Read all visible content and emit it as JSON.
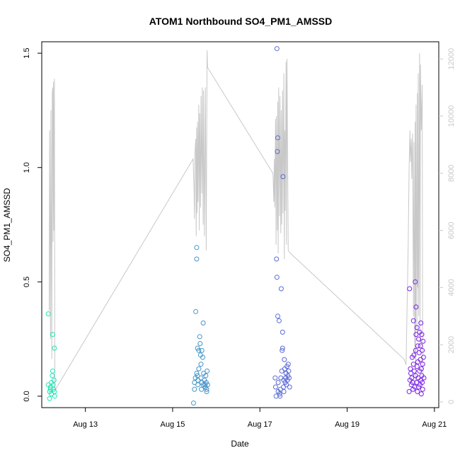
{
  "chart_data": {
    "type": "scatter",
    "title": "ATOM1 Northbound SO4_PM1_AMSSD",
    "xlabel": "Date",
    "ylabel": "SO4_PM1_AMSSD",
    "x_unit": "days in August",
    "xlim": [
      12.0,
      21.1
    ],
    "ylim": [
      -0.05,
      1.55
    ],
    "x_ticks": [
      13,
      15,
      17,
      19,
      21
    ],
    "x_tick_labels": [
      "Aug 13",
      "Aug 15",
      "Aug 17",
      "Aug 19",
      "Aug 21"
    ],
    "y_ticks": [
      0.0,
      0.5,
      1.0,
      1.5
    ],
    "y_tick_labels": [
      "0.0",
      "0.5",
      "1.0",
      "1.5"
    ],
    "y2_lim": [
      -200,
      12600
    ],
    "y2_ticks": [
      0,
      2000,
      4000,
      6000,
      8000,
      10000,
      12000
    ],
    "y2_tick_labels": [
      "0",
      "2000",
      "4000",
      "6000",
      "8000",
      "10000",
      "12000"
    ],
    "grid": false,
    "colors": {
      "points_start": "#22e6b4",
      "points_end": "#7a1ee6",
      "altitude_line": "#c8c8c8"
    },
    "series": [
      {
        "kind": "points",
        "points": [
          [
            12.15,
            0.36
          ],
          [
            12.15,
            0.05
          ],
          [
            12.18,
            0.02
          ],
          [
            12.18,
            -0.01
          ],
          [
            12.2,
            0.03
          ],
          [
            12.2,
            0.04
          ],
          [
            12.22,
            0.06
          ],
          [
            12.22,
            0.01
          ],
          [
            12.24,
            0.09
          ],
          [
            12.25,
            0.27
          ],
          [
            12.25,
            0.11
          ],
          [
            12.26,
            0.05
          ],
          [
            12.27,
            0.03
          ],
          [
            12.28,
            0.07
          ],
          [
            12.29,
            0.21
          ],
          [
            12.29,
            0.02
          ],
          [
            12.3,
            0.0
          ],
          [
            15.48,
            -0.03
          ],
          [
            15.5,
            0.03
          ],
          [
            15.5,
            0.06
          ],
          [
            15.52,
            0.08
          ],
          [
            15.53,
            0.37
          ],
          [
            15.55,
            0.65
          ],
          [
            15.55,
            0.6
          ],
          [
            15.55,
            0.1
          ],
          [
            15.57,
            0.21
          ],
          [
            15.57,
            0.09
          ],
          [
            15.58,
            0.07
          ],
          [
            15.58,
            0.05
          ],
          [
            15.6,
            0.2
          ],
          [
            15.6,
            0.12
          ],
          [
            15.62,
            0.26
          ],
          [
            15.63,
            0.23
          ],
          [
            15.64,
            0.18
          ],
          [
            15.65,
            0.14
          ],
          [
            15.65,
            0.08
          ],
          [
            15.66,
            0.03
          ],
          [
            15.67,
            0.2
          ],
          [
            15.67,
            0.06
          ],
          [
            15.69,
            0.17
          ],
          [
            15.7,
            0.32
          ],
          [
            15.7,
            0.05
          ],
          [
            15.71,
            0.1
          ],
          [
            15.73,
            0.07
          ],
          [
            15.74,
            0.05
          ],
          [
            15.75,
            0.04
          ],
          [
            15.76,
            0.09
          ],
          [
            15.77,
            0.06
          ],
          [
            15.78,
            0.03
          ],
          [
            15.78,
            0.02
          ],
          [
            15.79,
            0.11
          ],
          [
            15.8,
            0.05
          ],
          [
            17.35,
            0.08
          ],
          [
            17.36,
            0.04
          ],
          [
            17.37,
            0.0
          ],
          [
            17.38,
            0.6
          ],
          [
            17.39,
            1.52
          ],
          [
            17.39,
            0.52
          ],
          [
            17.4,
            1.07
          ],
          [
            17.41,
            1.13
          ],
          [
            17.41,
            0.35
          ],
          [
            17.42,
            0.06
          ],
          [
            17.42,
            0.02
          ],
          [
            17.44,
            0.33
          ],
          [
            17.45,
            0.01
          ],
          [
            17.46,
            0.0
          ],
          [
            17.47,
            0.03
          ],
          [
            17.48,
            0.08
          ],
          [
            17.49,
            0.47
          ],
          [
            17.5,
            0.11
          ],
          [
            17.51,
            0.2
          ],
          [
            17.52,
            0.21
          ],
          [
            17.52,
            0.28
          ],
          [
            17.53,
            0.96
          ],
          [
            17.54,
            0.04
          ],
          [
            17.55,
            0.07
          ],
          [
            17.55,
            0.02
          ],
          [
            17.56,
            0.16
          ],
          [
            17.57,
            0.12
          ],
          [
            17.58,
            0.06
          ],
          [
            17.59,
            0.08
          ],
          [
            17.6,
            0.1
          ],
          [
            17.61,
            0.05
          ],
          [
            17.62,
            0.13
          ],
          [
            17.63,
            0.07
          ],
          [
            17.64,
            0.09
          ],
          [
            17.65,
            0.14
          ],
          [
            17.66,
            0.11
          ],
          [
            17.67,
            0.08
          ],
          [
            17.68,
            0.04
          ],
          [
            20.42,
            0.02
          ],
          [
            20.43,
            0.47
          ],
          [
            20.44,
            0.07
          ],
          [
            20.45,
            0.12
          ],
          [
            20.46,
            0.1
          ],
          [
            20.47,
            0.05
          ],
          [
            20.48,
            0.08
          ],
          [
            20.49,
            0.17
          ],
          [
            20.5,
            0.06
          ],
          [
            20.51,
            0.03
          ],
          [
            20.52,
            0.14
          ],
          [
            20.52,
            0.33
          ],
          [
            20.53,
            0.18
          ],
          [
            20.54,
            0.11
          ],
          [
            20.55,
            0.04
          ],
          [
            20.56,
            0.5
          ],
          [
            20.57,
            0.2
          ],
          [
            20.57,
            0.09
          ],
          [
            20.58,
            0.27
          ],
          [
            20.58,
            0.39
          ],
          [
            20.59,
            0.06
          ],
          [
            20.6,
            0.3
          ],
          [
            20.6,
            0.13
          ],
          [
            20.61,
            0.02
          ],
          [
            20.62,
            0.22
          ],
          [
            20.62,
            0.15
          ],
          [
            20.63,
            0.08
          ],
          [
            20.64,
            0.25
          ],
          [
            20.64,
            0.04
          ],
          [
            20.65,
            0.19
          ],
          [
            20.66,
            0.28
          ],
          [
            20.66,
            0.11
          ],
          [
            20.67,
            0.05
          ],
          [
            20.68,
            0.16
          ],
          [
            20.68,
            0.22
          ],
          [
            20.69,
            0.07
          ],
          [
            20.69,
            0.32
          ],
          [
            20.7,
            0.12
          ],
          [
            20.7,
            0.01
          ],
          [
            20.71,
            0.27
          ],
          [
            20.71,
            0.09
          ],
          [
            20.72,
            0.06
          ],
          [
            20.72,
            0.2
          ],
          [
            20.73,
            0.14
          ],
          [
            20.73,
            0.03
          ],
          [
            20.74,
            0.24
          ],
          [
            20.75,
            0.17
          ],
          [
            20.76,
            0.08
          ]
        ]
      },
      {
        "kind": "line",
        "axis": "y2",
        "points": [
          [
            12.17,
            3200
          ],
          [
            12.18,
            9500
          ],
          [
            12.2,
            2200
          ],
          [
            12.21,
            10200
          ],
          [
            12.23,
            1500
          ],
          [
            12.24,
            10800
          ],
          [
            12.25,
            11000
          ],
          [
            12.26,
            5600
          ],
          [
            12.27,
            11200
          ],
          [
            12.28,
            6000
          ],
          [
            12.29,
            11300
          ],
          [
            12.3,
            400
          ],
          [
            15.47,
            8500
          ],
          [
            15.49,
            7400
          ],
          [
            15.5,
            6400
          ],
          [
            15.51,
            8700
          ],
          [
            15.53,
            9200
          ],
          [
            15.54,
            5800
          ],
          [
            15.55,
            9600
          ],
          [
            15.56,
            6600
          ],
          [
            15.57,
            9800
          ],
          [
            15.58,
            7000
          ],
          [
            15.6,
            10400
          ],
          [
            15.61,
            6000
          ],
          [
            15.62,
            10100
          ],
          [
            15.64,
            6800
          ],
          [
            15.65,
            10700
          ],
          [
            15.67,
            7300
          ],
          [
            15.68,
            11000
          ],
          [
            15.7,
            6200
          ],
          [
            15.71,
            10900
          ],
          [
            15.73,
            5800
          ],
          [
            15.75,
            11000
          ],
          [
            15.77,
            5300
          ],
          [
            15.79,
            12300
          ],
          [
            15.8,
            11700
          ],
          [
            17.3,
            8000
          ],
          [
            17.32,
            7000
          ],
          [
            17.33,
            8500
          ],
          [
            17.34,
            6800
          ],
          [
            17.36,
            9900
          ],
          [
            17.37,
            5500
          ],
          [
            17.38,
            10000
          ],
          [
            17.4,
            6000
          ],
          [
            17.41,
            10500
          ],
          [
            17.42,
            5200
          ],
          [
            17.43,
            11000
          ],
          [
            17.45,
            6500
          ],
          [
            17.46,
            10700
          ],
          [
            17.48,
            5900
          ],
          [
            17.49,
            10200
          ],
          [
            17.5,
            6200
          ],
          [
            17.52,
            10900
          ],
          [
            17.53,
            6600
          ],
          [
            17.55,
            11500
          ],
          [
            17.56,
            5000
          ],
          [
            17.57,
            9500
          ],
          [
            17.58,
            6700
          ],
          [
            17.6,
            11900
          ],
          [
            17.61,
            5500
          ],
          [
            17.62,
            12000
          ],
          [
            17.65,
            5300
          ],
          [
            17.7,
            5200
          ],
          [
            20.3,
            1500
          ],
          [
            20.35,
            1300
          ],
          [
            20.4,
            5500
          ],
          [
            20.42,
            8200
          ],
          [
            20.44,
            9500
          ],
          [
            20.45,
            8400
          ],
          [
            20.47,
            9200
          ],
          [
            20.48,
            7800
          ],
          [
            20.5,
            9400
          ],
          [
            20.52,
            3000
          ],
          [
            20.53,
            9100
          ],
          [
            20.55,
            1500
          ],
          [
            20.56,
            9800
          ],
          [
            20.57,
            500
          ],
          [
            20.58,
            10400
          ],
          [
            20.6,
            2500
          ],
          [
            20.61,
            10800
          ],
          [
            20.62,
            4000
          ],
          [
            20.63,
            11500
          ],
          [
            20.64,
            3000
          ],
          [
            20.66,
            12200
          ],
          [
            20.67,
            2000
          ],
          [
            20.68,
            11800
          ],
          [
            20.7,
            9500
          ],
          [
            20.72,
            11100
          ],
          [
            20.73,
            1500
          ],
          [
            20.74,
            900
          ]
        ]
      }
    ]
  }
}
